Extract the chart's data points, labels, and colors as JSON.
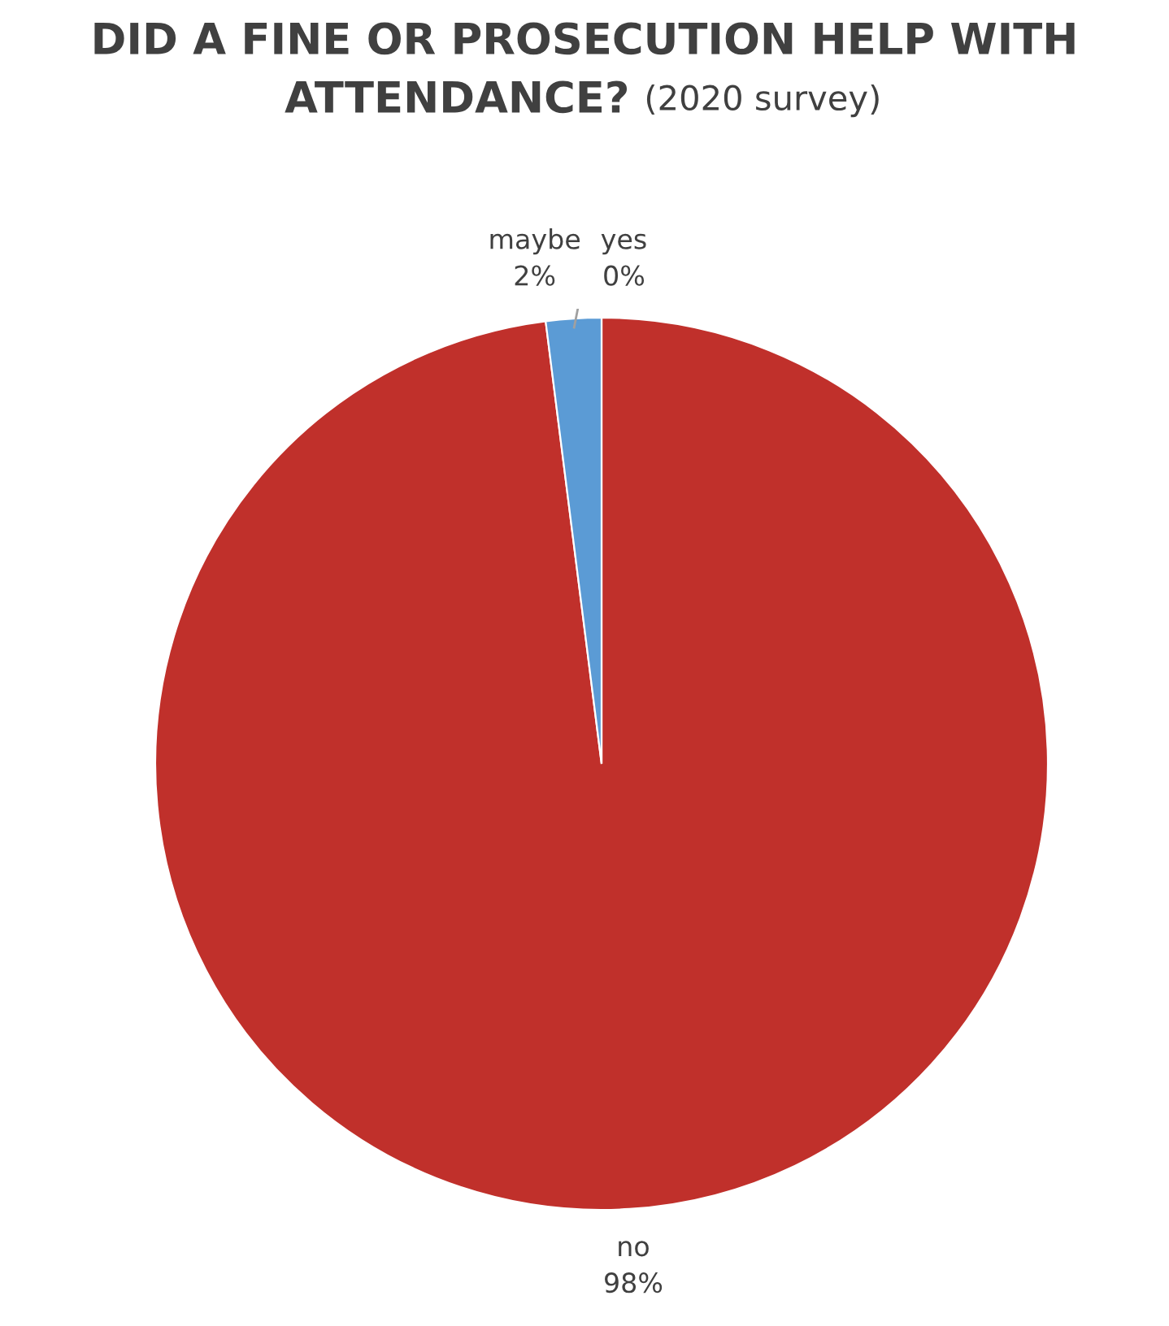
{
  "chart_data": {
    "type": "pie",
    "title": "DID A FINE OR PROSECUTION HELP WITH ATTENDANCE?",
    "subtitle": "(2020 survey)",
    "categories": [
      "yes",
      "no",
      "maybe"
    ],
    "values": [
      0,
      98,
      2
    ],
    "colors": [
      "#5b9bd5",
      "#c0302b",
      "#5b9bd5"
    ],
    "value_labels": [
      "0%",
      "98%",
      "2%"
    ]
  }
}
